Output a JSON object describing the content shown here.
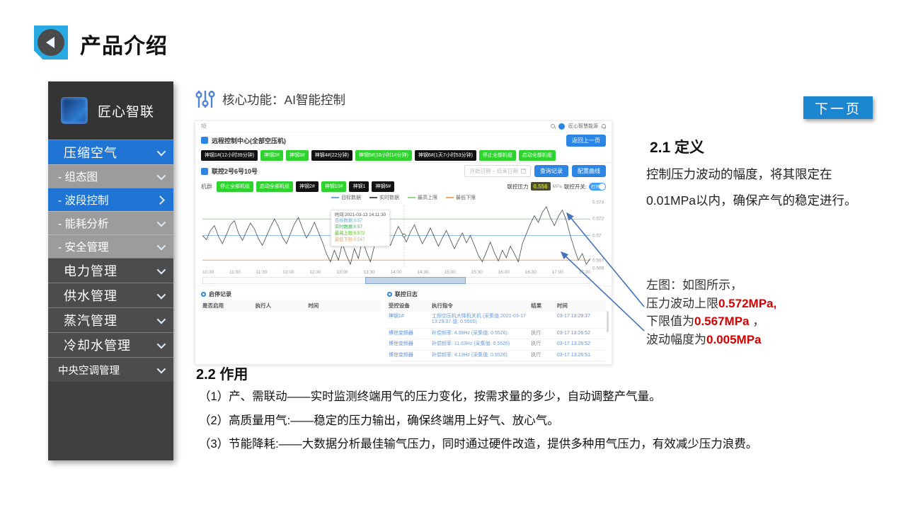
{
  "slide": {
    "title": "产品介绍",
    "next_button": "下一页"
  },
  "sidebar": {
    "brand": "匠心智联",
    "items": [
      {
        "label": "压缩空气",
        "state": "top-active",
        "chevron": "down"
      },
      {
        "label": "- 组态图",
        "state": "sub",
        "chevron": "down"
      },
      {
        "label": "- 波段控制",
        "state": "sub-active",
        "chevron": "right"
      },
      {
        "label": "- 能耗分析",
        "state": "sub",
        "chevron": "down"
      },
      {
        "label": "- 安全管理",
        "state": "sub",
        "chevron": "down"
      },
      {
        "label": "电力管理",
        "state": "top",
        "chevron": "down"
      },
      {
        "label": "供水管理",
        "state": "top",
        "chevron": "down"
      },
      {
        "label": "蒸汽管理",
        "state": "top",
        "chevron": "down"
      },
      {
        "label": "冷却水管理",
        "state": "top",
        "chevron": "down"
      },
      {
        "label": "中央空调管理",
        "state": "top small",
        "chevron": "down"
      }
    ]
  },
  "main": {
    "feature_heading": "核心功能：AI智能控制"
  },
  "dashboard": {
    "topbar": {
      "left_text": "项",
      "user_name": "匠心智慧能源"
    },
    "section1": {
      "title": "远程控制中心(全部空压机)",
      "back_button": "返回上一页",
      "machines": [
        {
          "label": "神钢1#(12小时39分钟)",
          "color": "black"
        },
        {
          "label": "神钢2#",
          "color": "green"
        },
        {
          "label": "神钢3#",
          "color": "green"
        },
        {
          "label": "神钢4#(22分钟)",
          "color": "black"
        },
        {
          "label": "神钢5#(16小时14分钟)",
          "color": "green"
        },
        {
          "label": "神钢6#(1天7小时53分钟)",
          "color": "black"
        },
        {
          "label": "停止全部机组",
          "color": "green"
        },
        {
          "label": "启动全部机组",
          "color": "green"
        }
      ]
    },
    "section2": {
      "title": "联控2号6号10号",
      "date_placeholder": "开始日期  ~  结束日期",
      "query_button": "查询记录",
      "config_button": "配置曲线",
      "group_label": "机群",
      "pills": [
        {
          "label": "停止全部机组",
          "color": "green"
        },
        {
          "label": "启动全部机组",
          "color": "green"
        },
        {
          "label": "神钢2#",
          "color": "black"
        },
        {
          "label": "神钢10#",
          "color": "green"
        },
        {
          "label": "神钢1",
          "color": "black"
        },
        {
          "label": "神钢6#",
          "color": "black"
        }
      ],
      "pressure_label": "联控压力",
      "pressure_value": "0.556",
      "pressure_unit": "MPa",
      "switch_label": "联控开关:",
      "switch_state": "打开"
    },
    "tables": {
      "left": {
        "title": "启停记录",
        "columns": [
          "是否启用",
          "执行人",
          "时间"
        ],
        "rows": []
      },
      "right": {
        "title": "联控日志",
        "columns": [
          "受控设备",
          "执行指令",
          "结果",
          "时间"
        ],
        "rows": [
          {
            "device": "神钢1#",
            "command": "工频空压机大降机关机 (采集值:2021-03-17 13:29:37 值: 0.5505)",
            "result": "",
            "time": "03-17 13:29:37"
          },
          {
            "device": "博世变频器",
            "command": "补偿频率: 4.09Hz (采集值: 0.5526)",
            "result": "执行",
            "time": "03-17 13:26:52"
          },
          {
            "device": "博世变频器",
            "command": "补偿频率: 11.63Hz (采集值: 0.5526)",
            "result": "执行",
            "time": "03-17 13:26:52"
          },
          {
            "device": "博世变频器",
            "command": "补偿频率: 4.13Hz (采集值: 0.5526)",
            "result": "执行",
            "time": "03-17 13:26:51"
          }
        ]
      }
    }
  },
  "chart_data": {
    "type": "line",
    "legend": [
      {
        "label": "目标数据",
        "color": "#6ea5dd"
      },
      {
        "label": "实时数据",
        "color": "#555555"
      },
      {
        "label": "最高上限",
        "color": "#8fd98f"
      },
      {
        "label": "最低下限",
        "color": "#eaa86f"
      }
    ],
    "x_ticks": [
      "10:30",
      "11:00",
      "11:30",
      "12:00",
      "12:30",
      "13:00",
      "13:30",
      "14:00",
      "14:30",
      "15:00",
      "15:30",
      "16:00",
      "16:30",
      "17:00",
      "17:30"
    ],
    "ylim": [
      0.566,
      0.574
    ],
    "y_axis_labels": [
      0.574,
      0.572,
      0.57,
      0.567,
      0.566
    ],
    "reference_lines": [
      {
        "name": "最高上限",
        "value": 0.572,
        "color": "#8fd98f"
      },
      {
        "name": "目标数据",
        "value": 0.57,
        "color": "#88b5e0"
      },
      {
        "name": "最低下限",
        "value": 0.567,
        "color": "#eaa86f"
      }
    ],
    "series": [
      {
        "name": "实时数据",
        "color": "#555555",
        "values": [
          0.57,
          0.5695,
          0.5706,
          0.5712,
          0.5699,
          0.569,
          0.5701,
          0.5713,
          0.5718,
          0.5703,
          0.5694,
          0.5705,
          0.5715,
          0.5708,
          0.5696,
          0.5688,
          0.5699,
          0.571,
          0.572,
          0.5711,
          0.5698,
          0.569,
          0.5702,
          0.5714,
          0.5722,
          0.5709,
          0.5697,
          0.5705,
          0.5716,
          0.5704,
          0.5692,
          0.5678,
          0.5668,
          0.5682,
          0.567,
          0.569,
          0.5676,
          0.5665,
          0.5684,
          0.5672,
          0.5695,
          0.568,
          0.5668,
          0.5687,
          0.57,
          0.5708,
          0.5697,
          0.5688,
          0.57,
          0.5711,
          0.5702,
          0.5692,
          0.5704,
          0.5713,
          0.5701,
          0.569,
          0.5699,
          0.5709,
          0.5698,
          0.5687,
          0.5697,
          0.5706,
          0.5695,
          0.5684,
          0.5694,
          0.5703,
          0.5691,
          0.57,
          0.5688,
          0.5676,
          0.5668,
          0.568,
          0.5692,
          0.5679,
          0.5669,
          0.5682,
          0.5673,
          0.5687,
          0.5678,
          0.5668,
          0.569,
          0.5702,
          0.5714,
          0.5724,
          0.5716,
          0.5728,
          0.5735,
          0.5722,
          0.5712,
          0.5723,
          0.5731,
          0.5718,
          0.57,
          0.5684,
          0.567,
          0.5678,
          0.5665,
          0.5672
        ]
      }
    ],
    "tooltip": {
      "x_fraction": 0.52,
      "marker_value": 0.57,
      "lines": [
        {
          "text": "时间:2021-03-13 14:11:30",
          "color": "#555555"
        },
        {
          "text": "目标数据:0.57",
          "color": "#6ea5dd"
        },
        {
          "text": "实时数据:0.57",
          "color": "#3aa65a"
        },
        {
          "text": "最高上限:0.572",
          "color": "#52c41a"
        },
        {
          "text": "最低下限:0.567",
          "color": "#eaa86f"
        }
      ]
    },
    "datazoom": {
      "start_fraction": 0.42,
      "end_fraction": 0.68
    }
  },
  "right_panel": {
    "def_heading": "2.1 定义",
    "def_text": "控制压力波动的幅度，将其限定在0.01MPa以内，确保产气的稳定进行。",
    "note_lines": [
      [
        {
          "t": "左图：如图所示，",
          "red": false
        }
      ],
      [
        {
          "t": "压力波动上限",
          "red": false
        },
        {
          "t": "0.572MPa,",
          "red": true
        }
      ],
      [
        {
          "t": "下限值为",
          "red": false
        },
        {
          "t": "0.567MPa",
          "red": true
        },
        {
          "t": " ，",
          "red": false
        }
      ],
      [
        {
          "t": "波动幅度为",
          "red": false
        },
        {
          "t": "0.005MPa",
          "red": true
        }
      ]
    ]
  },
  "bottom": {
    "heading": "2.2 作用",
    "points": [
      "（1）产、需联动——实时监测终端用气的压力变化，按需求量的多少，自动调整产气量。",
      "（2）高质量用气:——稳定的压力输出，确保终端用上好气、放心气。",
      "（3）节能降耗:——大数据分析最佳输气压力，同时通过硬件改造，提供多种用气压力，有效减少压力浪费。"
    ]
  }
}
